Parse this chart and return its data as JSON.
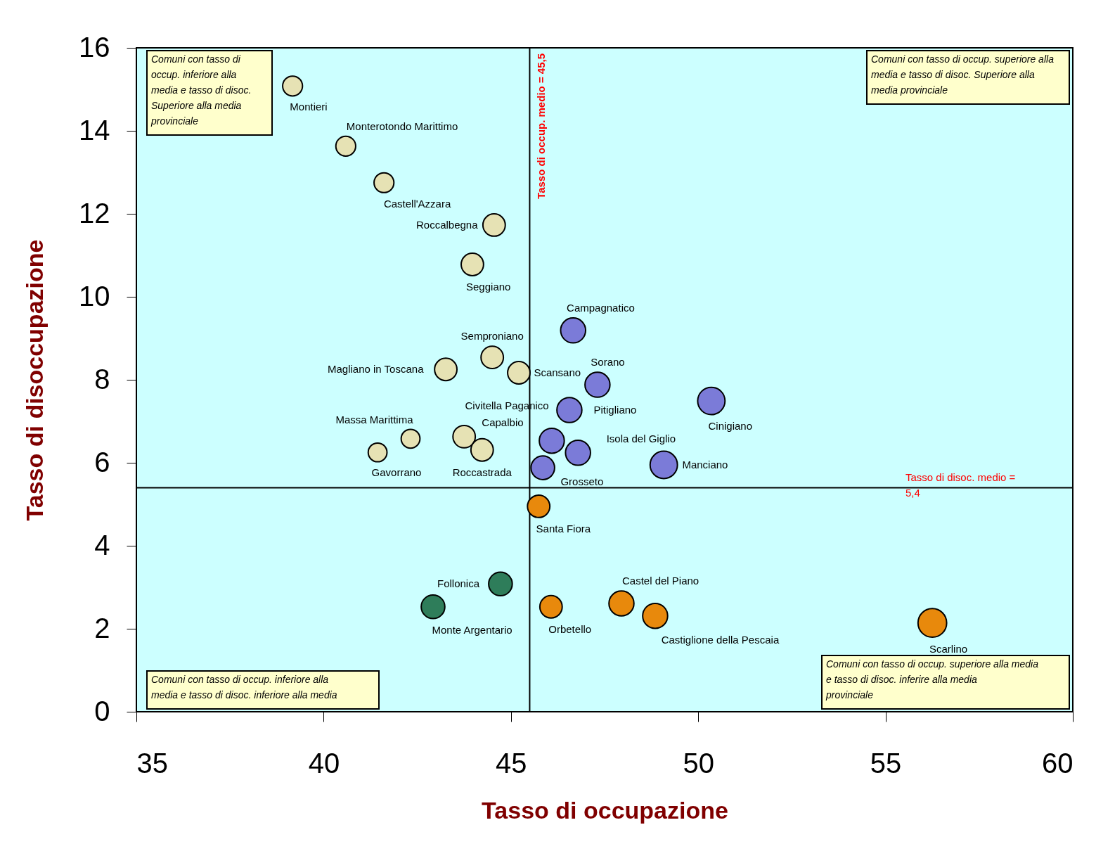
{
  "chart_data": {
    "type": "bubble",
    "xlabel": "Tasso di occupazione",
    "ylabel": "Tasso di disoccupazione",
    "xlim": [
      35,
      60
    ],
    "ylim": [
      0,
      16
    ],
    "xticks": [
      35,
      40,
      45,
      50,
      55,
      60
    ],
    "yticks": [
      0,
      2,
      4,
      6,
      8,
      10,
      12,
      14,
      16
    ],
    "series": [
      {
        "color": "#e6e2b4",
        "x": [
          39.17,
          40.59,
          41.61,
          44.55,
          43.97,
          43.26,
          44.5,
          45.21,
          42.32,
          41.44,
          43.75,
          44.23
        ],
        "values": [
          15.08,
          13.63,
          12.75,
          11.73,
          10.78,
          8.25,
          8.54,
          8.17,
          6.58,
          6.25,
          6.63,
          6.31
        ],
        "sizes": [
          0.48,
          0.48,
          0.48,
          0.61,
          0.61,
          0.61,
          0.61,
          0.61,
          0.43,
          0.43,
          0.61,
          0.61
        ],
        "value_labels": [
          "Montieri",
          "Monterotondo Marittimo",
          "Castell'Azzara",
          "Roccalbegna",
          "Seggiano",
          "Magliano in Toscana",
          "Semproniano",
          "Scansano",
          "Massa Marittima",
          "Gavorrano",
          "Capalbio",
          "Roccastrada"
        ]
      },
      {
        "color": "#7b7bd8",
        "x": [
          46.66,
          47.31,
          46.56,
          50.35,
          46.09,
          46.79,
          45.85,
          49.08
        ],
        "values": [
          9.19,
          7.88,
          7.27,
          7.49,
          6.53,
          6.24,
          5.88,
          5.95
        ],
        "sizes": [
          0.76,
          0.76,
          0.76,
          0.91,
          0.76,
          0.76,
          0.68,
          0.91
        ],
        "value_labels": [
          "Campagnatico",
          "Sorano",
          "Pitigliano",
          "Cinigiano",
          "Civitella Paganico",
          "Isola del Giglio",
          "Grosseto",
          "Manciano"
        ]
      },
      {
        "color": "#e8890c",
        "x": [
          45.74,
          46.07,
          47.95,
          48.85,
          56.25
        ],
        "values": [
          4.95,
          2.53,
          2.61,
          2.31,
          2.14
        ],
        "sizes": [
          0.61,
          0.61,
          0.76,
          0.76,
          1
        ],
        "value_labels": [
          "Santa Fiora",
          "Orbetello",
          "Castel del Piano",
          "Castiglione della Pescaia",
          "Scarlino"
        ]
      },
      {
        "color": "#2e7d5a",
        "x": [
          44.72,
          42.92
        ],
        "values": [
          3.08,
          2.53
        ],
        "sizes": [
          0.68,
          0.68
        ],
        "value_labels": [
          "Follonica",
          "Monte Argentario"
        ]
      }
    ],
    "ref_lines": [
      {
        "axis": "x",
        "value": 45.5,
        "label": "Tasso di occup. medio = 45,5"
      },
      {
        "axis": "y",
        "value": 5.4,
        "label": "Tasso di disoc. medio = 5,4"
      }
    ],
    "annotations": [
      "Comuni con tasso di occup. inferiore alla media e tasso di disoc. Superiore alla media provinciale",
      "Comuni con tasso di occup. superiore alla media e tasso di disoc. Superiore alla media provinciale",
      "Comuni con tasso di occup. inferiore alla media e tasso di disoc. inferiore alla media",
      "Comuni con tasso di occup. superiore alla media e tasso di disoc. inferire alla media provinciale"
    ]
  }
}
